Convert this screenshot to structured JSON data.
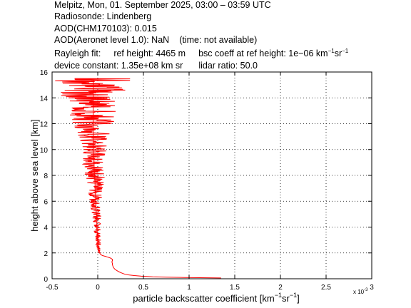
{
  "header": {
    "line1": "Melpitz, Mon, 01. September 2025, 03:00 – 03:59 UTC",
    "line2": "Radiosonde: Lindenberg",
    "line3": "AOD(CHM170103): 0.015",
    "line4_a": "AOD(Aeronet level 1.0): NaN",
    "line4_b": "(time: not available)",
    "line5_a": "Rayleigh fit:",
    "line5_b": "ref height: 4465 m",
    "line5_c": "bsc coeff at ref height: 1e−06 km",
    "line5_sup1": "−1",
    "line5_sr": "sr",
    "line5_sup2": "−1",
    "line6_a": "device constant: 1.35e+08 km sr",
    "line6_b": "lidar ratio: 50.0"
  },
  "chart_data": {
    "type": "line",
    "title": "",
    "xlabel": "particle backscatter coefficient [km⁻¹sr⁻¹]",
    "xlabel_parts": {
      "main": "particle backscatter coefficient [km",
      "sup1": "−1",
      "mid": "sr",
      "sup2": "−1",
      "end": "]"
    },
    "ylabel": "height above sea level [km]",
    "x_multiplier": "x 10",
    "x_multiplier_exp": "-3",
    "xlim": [
      -0.5,
      3
    ],
    "ylim": [
      0,
      16
    ],
    "xticks": [
      "-0.5",
      "0",
      "0.5",
      "1",
      "1.5",
      "2",
      "2.5",
      "3"
    ],
    "yticks": [
      "0",
      "2",
      "4",
      "6",
      "8",
      "10",
      "12",
      "14",
      "16"
    ],
    "grid": true,
    "series": [
      {
        "color": "#ff0000",
        "points": [
          [
            1.35,
            0.06
          ],
          [
            1.2,
            0.08
          ],
          [
            0.95,
            0.1
          ],
          [
            0.75,
            0.12
          ],
          [
            0.6,
            0.15
          ],
          [
            0.48,
            0.2
          ],
          [
            0.4,
            0.25
          ],
          [
            0.34,
            0.3
          ],
          [
            0.3,
            0.35
          ],
          [
            0.28,
            0.4
          ],
          [
            0.25,
            0.48
          ],
          [
            0.23,
            0.55
          ],
          [
            0.21,
            0.63
          ],
          [
            0.19,
            0.72
          ],
          [
            0.18,
            0.8
          ],
          [
            0.17,
            0.9
          ],
          [
            0.165,
            1.0
          ],
          [
            0.16,
            1.1
          ],
          [
            0.16,
            1.2
          ],
          [
            0.155,
            1.3
          ],
          [
            0.16,
            1.4
          ],
          [
            0.16,
            1.5
          ],
          [
            0.14,
            1.6
          ],
          [
            0.1,
            1.7
          ],
          [
            0.05,
            1.8
          ],
          [
            0.03,
            1.9
          ],
          [
            0.02,
            2.0
          ],
          [
            0.01,
            2.2
          ],
          [
            0.005,
            2.5
          ],
          [
            0.0,
            3.0
          ],
          [
            -0.005,
            3.5
          ],
          [
            -0.01,
            4.0
          ],
          [
            -0.01,
            4.5
          ],
          [
            -0.015,
            5.0
          ],
          [
            -0.02,
            5.5
          ],
          [
            -0.02,
            6.0
          ],
          [
            -0.025,
            6.5
          ],
          [
            -0.03,
            7.0
          ],
          [
            -0.03,
            7.5
          ],
          [
            -0.035,
            8.0
          ],
          [
            -0.04,
            8.5
          ],
          [
            -0.04,
            9.0
          ],
          [
            -0.045,
            9.5
          ],
          [
            -0.05,
            10.0
          ],
          [
            -0.05,
            10.5
          ],
          [
            -0.05,
            11.0
          ],
          [
            -0.05,
            11.5
          ],
          [
            -0.05,
            12.0
          ],
          [
            -0.05,
            12.5
          ],
          [
            -0.05,
            13.0
          ],
          [
            -0.05,
            13.5
          ],
          [
            -0.05,
            14.0
          ],
          [
            -0.05,
            14.5
          ],
          [
            -0.05,
            15.0
          ],
          [
            -0.05,
            15.4
          ]
        ]
      }
    ]
  }
}
